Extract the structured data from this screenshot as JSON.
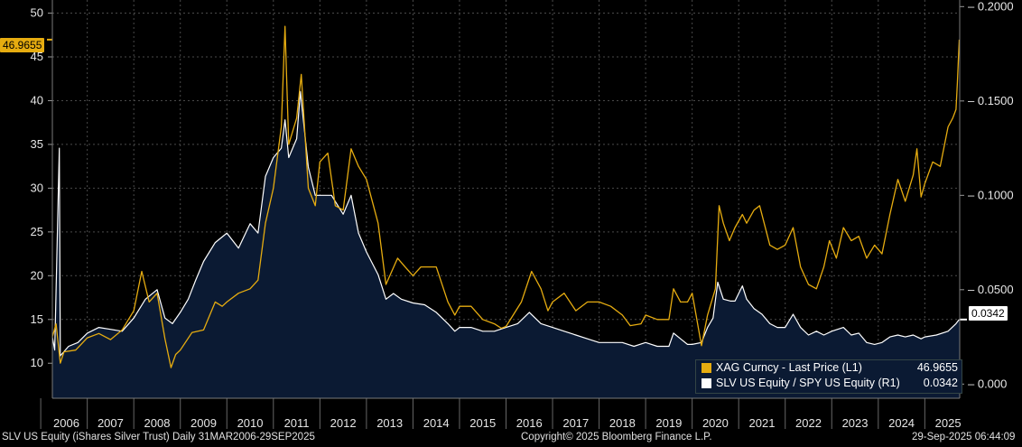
{
  "chart_data": {
    "type": "line",
    "x_range": [
      2006.25,
      2025.75
    ],
    "year_labels": [
      "2006",
      "2007",
      "2008",
      "2009",
      "2010",
      "2011",
      "2012",
      "2013",
      "2014",
      "2015",
      "2016",
      "2017",
      "2018",
      "2019",
      "2020",
      "2021",
      "2022",
      "2023",
      "2024",
      "2025"
    ],
    "left_axis": {
      "ticks": [
        10,
        15,
        20,
        25,
        30,
        35,
        40,
        45,
        50
      ],
      "range": [
        6,
        51.5
      ]
    },
    "right_axis": {
      "ticks": [
        "0.000",
        "0.0500",
        "0.1000",
        "0.1500",
        "0.2000"
      ],
      "range": [
        -0.0075,
        0.2035
      ]
    },
    "grid": true,
    "legend_placement": "bottom-right",
    "series": [
      {
        "name": "XAG Curncy - Last Price (L1)",
        "axis": "left",
        "color": "#e6ac10",
        "last_value": "46.9655",
        "points": [
          [
            2006.25,
            13.0
          ],
          [
            2006.33,
            14.5
          ],
          [
            2006.42,
            10.0
          ],
          [
            2006.5,
            11.3
          ],
          [
            2006.75,
            11.5
          ],
          [
            2007.0,
            12.9
          ],
          [
            2007.25,
            13.4
          ],
          [
            2007.5,
            12.7
          ],
          [
            2007.75,
            13.8
          ],
          [
            2008.0,
            16.0
          ],
          [
            2008.17,
            20.5
          ],
          [
            2008.33,
            17.0
          ],
          [
            2008.5,
            18.0
          ],
          [
            2008.67,
            12.8
          ],
          [
            2008.8,
            9.5
          ],
          [
            2008.9,
            11.0
          ],
          [
            2009.0,
            11.5
          ],
          [
            2009.25,
            13.5
          ],
          [
            2009.5,
            13.8
          ],
          [
            2009.75,
            17.0
          ],
          [
            2009.9,
            16.5
          ],
          [
            2010.0,
            17.0
          ],
          [
            2010.25,
            18.0
          ],
          [
            2010.5,
            18.5
          ],
          [
            2010.67,
            19.5
          ],
          [
            2010.83,
            26.0
          ],
          [
            2011.0,
            30.0
          ],
          [
            2011.17,
            37.0
          ],
          [
            2011.25,
            48.5
          ],
          [
            2011.33,
            35.0
          ],
          [
            2011.5,
            38.0
          ],
          [
            2011.6,
            43.0
          ],
          [
            2011.75,
            30.0
          ],
          [
            2011.9,
            28.0
          ],
          [
            2012.0,
            33.0
          ],
          [
            2012.17,
            34.0
          ],
          [
            2012.33,
            28.0
          ],
          [
            2012.5,
            27.5
          ],
          [
            2012.67,
            34.5
          ],
          [
            2012.83,
            32.5
          ],
          [
            2013.0,
            31.0
          ],
          [
            2013.25,
            26.0
          ],
          [
            2013.42,
            19.0
          ],
          [
            2013.67,
            22.0
          ],
          [
            2013.83,
            21.0
          ],
          [
            2014.0,
            20.0
          ],
          [
            2014.17,
            21.0
          ],
          [
            2014.5,
            21.0
          ],
          [
            2014.75,
            17.0
          ],
          [
            2014.9,
            15.5
          ],
          [
            2015.0,
            16.5
          ],
          [
            2015.25,
            16.5
          ],
          [
            2015.5,
            15.0
          ],
          [
            2015.75,
            14.5
          ],
          [
            2015.9,
            14.0
          ],
          [
            2016.0,
            14.2
          ],
          [
            2016.33,
            17.0
          ],
          [
            2016.55,
            20.5
          ],
          [
            2016.75,
            18.5
          ],
          [
            2016.9,
            16.0
          ],
          [
            2017.0,
            17.0
          ],
          [
            2017.25,
            18.0
          ],
          [
            2017.5,
            16.0
          ],
          [
            2017.75,
            17.0
          ],
          [
            2018.0,
            17.0
          ],
          [
            2018.25,
            16.5
          ],
          [
            2018.5,
            15.5
          ],
          [
            2018.67,
            14.3
          ],
          [
            2018.9,
            14.5
          ],
          [
            2019.0,
            15.5
          ],
          [
            2019.25,
            15.0
          ],
          [
            2019.5,
            15.0
          ],
          [
            2019.6,
            18.5
          ],
          [
            2019.75,
            17.0
          ],
          [
            2019.9,
            17.0
          ],
          [
            2020.0,
            18.0
          ],
          [
            2020.2,
            12.0
          ],
          [
            2020.33,
            15.5
          ],
          [
            2020.5,
            18.5
          ],
          [
            2020.58,
            28.0
          ],
          [
            2020.67,
            26.0
          ],
          [
            2020.8,
            24.0
          ],
          [
            2020.92,
            25.5
          ],
          [
            2021.08,
            27.0
          ],
          [
            2021.17,
            26.0
          ],
          [
            2021.33,
            27.5
          ],
          [
            2021.45,
            28.0
          ],
          [
            2021.67,
            23.5
          ],
          [
            2021.83,
            23.0
          ],
          [
            2022.0,
            23.5
          ],
          [
            2022.17,
            25.5
          ],
          [
            2022.33,
            21.0
          ],
          [
            2022.5,
            19.0
          ],
          [
            2022.67,
            18.5
          ],
          [
            2022.83,
            21.0
          ],
          [
            2022.95,
            24.0
          ],
          [
            2023.1,
            22.0
          ],
          [
            2023.25,
            25.5
          ],
          [
            2023.42,
            24.0
          ],
          [
            2023.58,
            24.5
          ],
          [
            2023.75,
            22.0
          ],
          [
            2023.92,
            23.5
          ],
          [
            2024.08,
            22.5
          ],
          [
            2024.25,
            27.0
          ],
          [
            2024.42,
            31.0
          ],
          [
            2024.58,
            28.5
          ],
          [
            2024.75,
            31.5
          ],
          [
            2024.83,
            34.5
          ],
          [
            2024.92,
            29.0
          ],
          [
            2025.0,
            30.5
          ],
          [
            2025.17,
            33.0
          ],
          [
            2025.33,
            32.5
          ],
          [
            2025.5,
            37.0
          ],
          [
            2025.6,
            38.0
          ],
          [
            2025.67,
            39.0
          ],
          [
            2025.7,
            42.0
          ],
          [
            2025.74,
            46.97
          ]
        ]
      },
      {
        "name": "SLV US Equity / SPY US Equity (R1)",
        "axis": "right",
        "color": "#ffffff",
        "fill": "#0b1a33",
        "last_value": "0.0342",
        "points": [
          [
            2006.25,
            0.025
          ],
          [
            2006.3,
            0.018
          ],
          [
            2006.4,
            0.125
          ],
          [
            2006.42,
            0.015
          ],
          [
            2006.6,
            0.02
          ],
          [
            2006.8,
            0.022
          ],
          [
            2007.0,
            0.027
          ],
          [
            2007.25,
            0.03
          ],
          [
            2007.5,
            0.029
          ],
          [
            2007.75,
            0.028
          ],
          [
            2008.0,
            0.035
          ],
          [
            2008.25,
            0.045
          ],
          [
            2008.5,
            0.05
          ],
          [
            2008.67,
            0.035
          ],
          [
            2008.83,
            0.032
          ],
          [
            2009.0,
            0.038
          ],
          [
            2009.17,
            0.045
          ],
          [
            2009.33,
            0.055
          ],
          [
            2009.5,
            0.065
          ],
          [
            2009.75,
            0.075
          ],
          [
            2010.0,
            0.08
          ],
          [
            2010.25,
            0.072
          ],
          [
            2010.5,
            0.085
          ],
          [
            2010.67,
            0.08
          ],
          [
            2010.83,
            0.11
          ],
          [
            2011.0,
            0.12
          ],
          [
            2011.17,
            0.125
          ],
          [
            2011.25,
            0.14
          ],
          [
            2011.33,
            0.12
          ],
          [
            2011.5,
            0.13
          ],
          [
            2011.58,
            0.155
          ],
          [
            2011.75,
            0.115
          ],
          [
            2011.9,
            0.1
          ],
          [
            2012.0,
            0.1
          ],
          [
            2012.25,
            0.1
          ],
          [
            2012.5,
            0.09
          ],
          [
            2012.67,
            0.1
          ],
          [
            2012.83,
            0.08
          ],
          [
            2013.0,
            0.07
          ],
          [
            2013.25,
            0.058
          ],
          [
            2013.42,
            0.045
          ],
          [
            2013.58,
            0.048
          ],
          [
            2013.75,
            0.045
          ],
          [
            2014.0,
            0.043
          ],
          [
            2014.25,
            0.042
          ],
          [
            2014.5,
            0.038
          ],
          [
            2014.75,
            0.032
          ],
          [
            2014.9,
            0.028
          ],
          [
            2015.0,
            0.03
          ],
          [
            2015.25,
            0.03
          ],
          [
            2015.5,
            0.028
          ],
          [
            2015.75,
            0.028
          ],
          [
            2016.0,
            0.03
          ],
          [
            2016.25,
            0.032
          ],
          [
            2016.5,
            0.038
          ],
          [
            2016.75,
            0.032
          ],
          [
            2017.0,
            0.03
          ],
          [
            2017.25,
            0.028
          ],
          [
            2017.5,
            0.026
          ],
          [
            2017.75,
            0.024
          ],
          [
            2018.0,
            0.022
          ],
          [
            2018.25,
            0.022
          ],
          [
            2018.5,
            0.022
          ],
          [
            2018.75,
            0.02
          ],
          [
            2019.0,
            0.022
          ],
          [
            2019.25,
            0.02
          ],
          [
            2019.5,
            0.02
          ],
          [
            2019.6,
            0.027
          ],
          [
            2019.75,
            0.024
          ],
          [
            2019.9,
            0.021
          ],
          [
            2020.0,
            0.021
          ],
          [
            2020.2,
            0.022
          ],
          [
            2020.33,
            0.03
          ],
          [
            2020.45,
            0.035
          ],
          [
            2020.55,
            0.054
          ],
          [
            2020.67,
            0.045
          ],
          [
            2020.83,
            0.044
          ],
          [
            2020.92,
            0.044
          ],
          [
            2021.0,
            0.048
          ],
          [
            2021.08,
            0.052
          ],
          [
            2021.17,
            0.045
          ],
          [
            2021.33,
            0.04
          ],
          [
            2021.5,
            0.037
          ],
          [
            2021.67,
            0.032
          ],
          [
            2021.83,
            0.03
          ],
          [
            2022.0,
            0.03
          ],
          [
            2022.17,
            0.037
          ],
          [
            2022.33,
            0.03
          ],
          [
            2022.5,
            0.026
          ],
          [
            2022.67,
            0.028
          ],
          [
            2022.83,
            0.026
          ],
          [
            2023.0,
            0.028
          ],
          [
            2023.25,
            0.03
          ],
          [
            2023.42,
            0.026
          ],
          [
            2023.58,
            0.027
          ],
          [
            2023.75,
            0.022
          ],
          [
            2023.92,
            0.021
          ],
          [
            2024.08,
            0.022
          ],
          [
            2024.25,
            0.025
          ],
          [
            2024.42,
            0.026
          ],
          [
            2024.58,
            0.025
          ],
          [
            2024.75,
            0.026
          ],
          [
            2024.92,
            0.024
          ],
          [
            2025.0,
            0.025
          ],
          [
            2025.25,
            0.026
          ],
          [
            2025.5,
            0.028
          ],
          [
            2025.67,
            0.032
          ],
          [
            2025.74,
            0.0342
          ]
        ]
      }
    ]
  },
  "legend": {
    "xag_label": "XAG Curncy - Last Price (L1)",
    "xag_value": "46.9655",
    "ratio_label": "SLV US Equity / SPY US Equity (R1)",
    "ratio_value": "0.0342"
  },
  "tags": {
    "left_last": "46.9655",
    "right_last": "0.0342"
  },
  "footer": {
    "left": "SLV US Equity (iShares Silver Trust)  Daily 31MAR2006-29SEP2025",
    "center": "Copyright© 2025 Bloomberg Finance L.P.",
    "right": "29-Sep-2025 06:44:09"
  },
  "colors": {
    "gold": "#e6ac10",
    "white": "#ffffff",
    "navy": "#0b1a33",
    "grid": "#4a4a4a",
    "tick_color": "#e6e6e6"
  }
}
